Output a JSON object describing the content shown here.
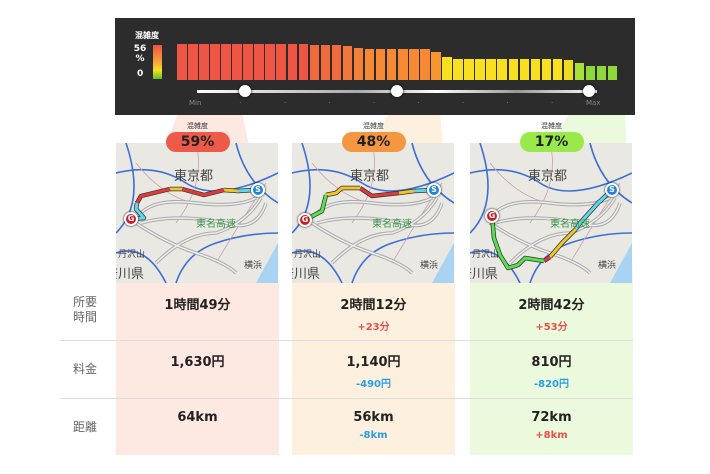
{
  "legend": {
    "title": "混雑度",
    "max": "56",
    "unit": "%",
    "min": "0"
  },
  "chart_data": {
    "type": "bar",
    "title": "混雑度",
    "ylim": [
      0,
      56
    ],
    "values": [
      56,
      56,
      56,
      56,
      56,
      56,
      56,
      56,
      56,
      56,
      56,
      56,
      55,
      54,
      54,
      53,
      50,
      48,
      48,
      48,
      48,
      48,
      48,
      43,
      36,
      33,
      33,
      33,
      33,
      33,
      33,
      33,
      33,
      33,
      33,
      31,
      26,
      22,
      22,
      22
    ],
    "colors": [
      "#ef5545",
      "#ef5545",
      "#ef5545",
      "#ef5545",
      "#ef5545",
      "#ef5545",
      "#ef5545",
      "#ef5545",
      "#ef5545",
      "#ef5545",
      "#ef5545",
      "#ef5545",
      "#f06a3e",
      "#f06a3e",
      "#f06a3e",
      "#f2773a",
      "#f47f36",
      "#f68a34",
      "#f68a34",
      "#f68a34",
      "#f68a34",
      "#f68a34",
      "#f68a34",
      "#f89530",
      "#f8e020",
      "#f8e020",
      "#f8e020",
      "#f8e020",
      "#f8e020",
      "#f8e020",
      "#f8e020",
      "#f8e020",
      "#f8e020",
      "#f8e020",
      "#f8e020",
      "#f2da20",
      "#a8e03a",
      "#8fd83a",
      "#8fd83a",
      "#8fd83a"
    ]
  },
  "slider": {
    "min_label": "Min",
    "max_label": "Max",
    "knobs": [
      0.12,
      0.5,
      0.98
    ]
  },
  "routes": [
    {
      "badge_label": "混雑度",
      "congestion": "59%",
      "color": "#ee5a4a",
      "bg": "#fde8e2",
      "time": "1時間49分",
      "time_diff": "",
      "fee": "1,630円",
      "fee_diff": "",
      "distance": "64km",
      "distance_diff": ""
    },
    {
      "badge_label": "混雑度",
      "congestion": "48%",
      "color": "#f59640",
      "bg": "#fdf0de",
      "time": "2時間12分",
      "time_diff": "+23分",
      "fee": "1,140円",
      "fee_diff": "-490円",
      "distance": "56km",
      "distance_diff": "-8km"
    },
    {
      "badge_label": "混雑度",
      "congestion": "17%",
      "color": "#9ae94a",
      "bg": "#ebf9dc",
      "time": "2時間42分",
      "time_diff": "+53分",
      "fee": "810円",
      "fee_diff": "-820円",
      "distance": "72km",
      "distance_diff": "+8km"
    }
  ],
  "row_labels": {
    "time": "所要\n時間",
    "fee": "料金",
    "distance": "距離"
  },
  "map_labels": {
    "tokyo": "東京都",
    "tomei": "東名高速",
    "tanzawa": "丹沢山",
    "kanagawa": "神奈川県",
    "yokohama": "横浜",
    "start": "S",
    "goal": "G"
  },
  "diff_colors": {
    "plus": "#e8504a",
    "minus": "#2a9ee0"
  }
}
